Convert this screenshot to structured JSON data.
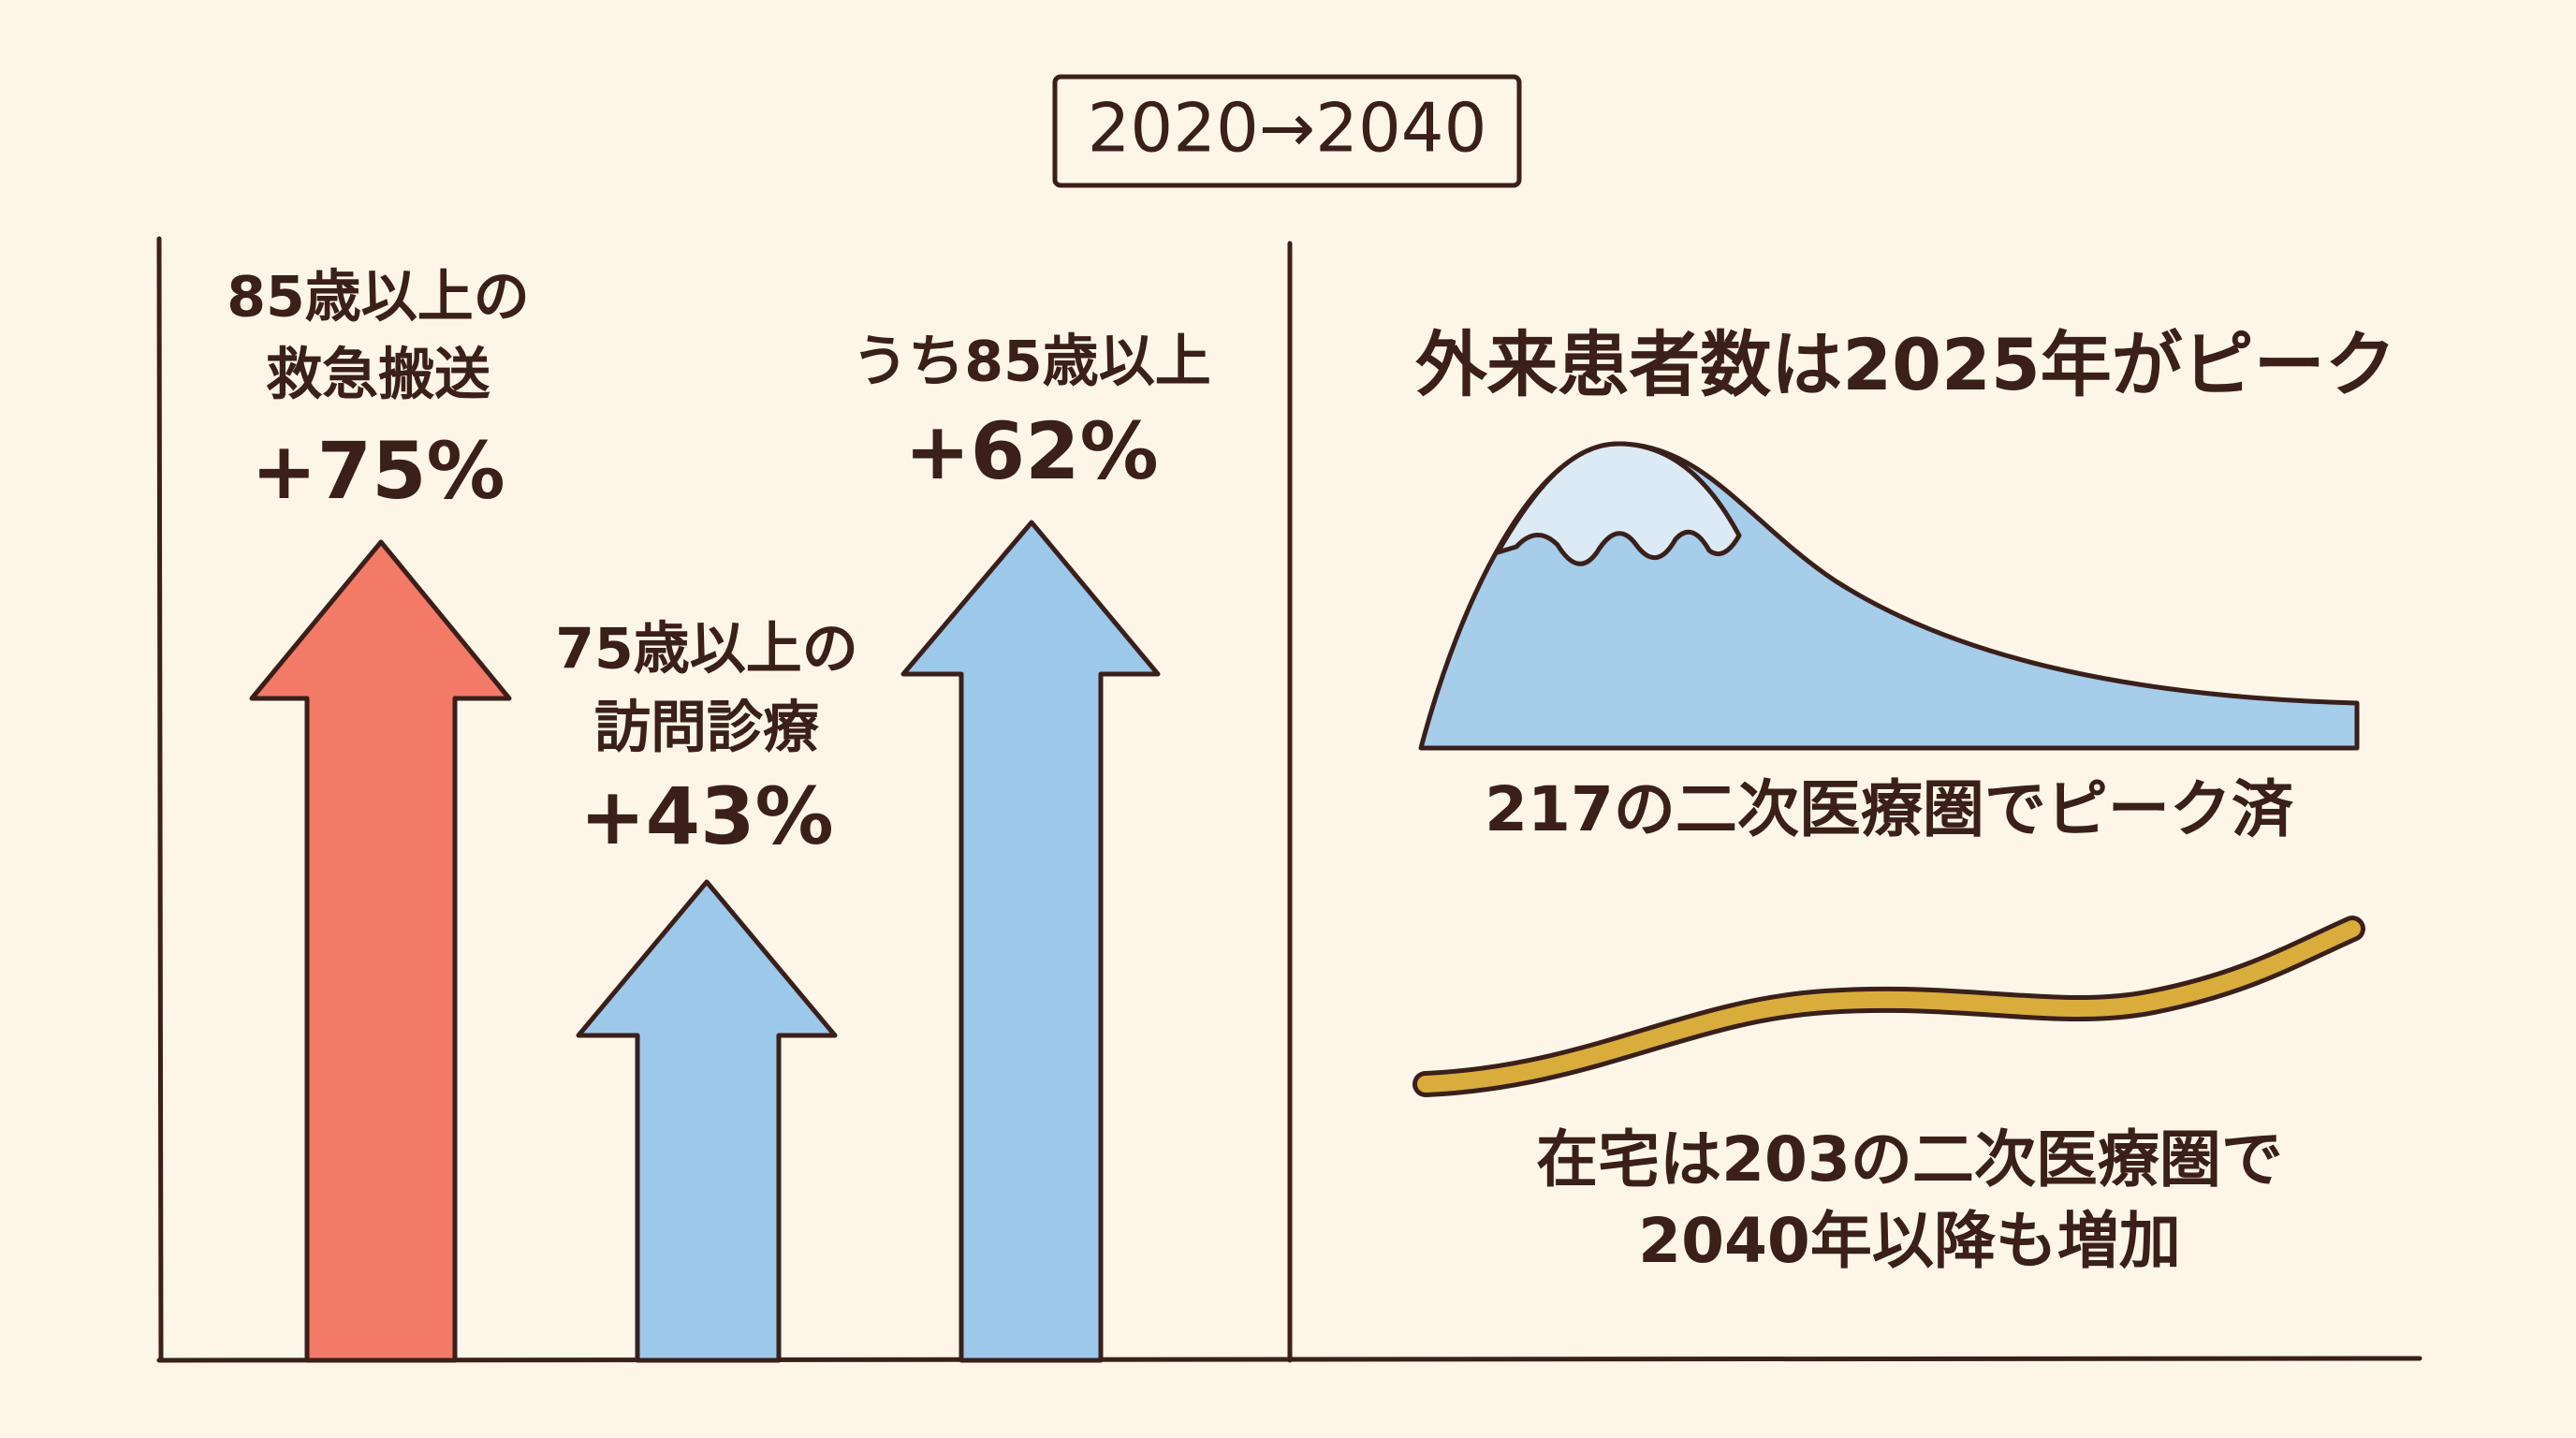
{
  "badge": "2020→2040",
  "left": {
    "items": [
      {
        "label_lines": [
          "85歳以上の",
          "救急搬送"
        ],
        "value": "+75%"
      },
      {
        "label_lines": [
          "75歳以上の",
          "訪問診療"
        ],
        "value": "+43%"
      },
      {
        "label_lines": [
          "うち85歳以上"
        ],
        "value": "+62%"
      }
    ]
  },
  "right": {
    "title": "外来患者数は2025年がピーク",
    "peak_caption": "217の二次医療圏でピーク済",
    "growth_caption_lines": [
      "在宅は203の二次医療圏で",
      "2040年以降も増加"
    ]
  }
}
